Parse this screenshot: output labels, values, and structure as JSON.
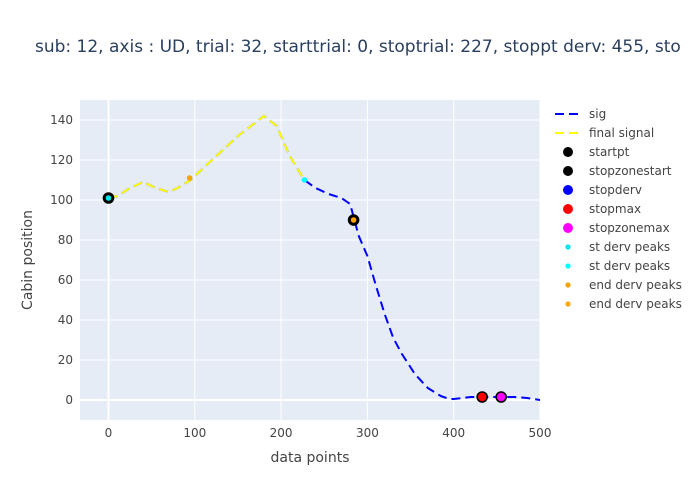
{
  "chart_data": {
    "type": "line",
    "title": "sub: 12, axis : UD, trial: 32, starttrial: 0, stoptrial: 227, stoppt derv: 455, sto",
    "xlabel": "data points",
    "ylabel": "Cabin position",
    "xlim": [
      -33,
      500
    ],
    "ylim": [
      -10,
      150
    ],
    "xticks": [
      0,
      100,
      200,
      300,
      400,
      500
    ],
    "yticks": [
      0,
      20,
      40,
      60,
      80,
      100,
      120,
      140
    ],
    "grid": true,
    "legend_position": "right",
    "series": [
      {
        "name": "sig",
        "type": "line",
        "style": "dash",
        "color": "#0000ff",
        "x": [
          0,
          10,
          25,
          40,
          55,
          70,
          80,
          95,
          110,
          130,
          150,
          165,
          180,
          195,
          210,
          227,
          240,
          255,
          270,
          280,
          285,
          290,
          300,
          310,
          320,
          330,
          340,
          355,
          370,
          385,
          395,
          400,
          410,
          420,
          430,
          440,
          455,
          470,
          485,
          500
        ],
        "y": [
          101,
          102,
          106,
          109,
          106,
          104,
          106,
          110,
          116,
          124,
          132,
          137,
          142,
          137,
          122,
          110,
          106,
          103,
          101,
          98,
          90,
          82,
          72,
          57,
          43,
          31,
          23,
          13,
          6,
          2,
          0.5,
          0.5,
          1,
          1.5,
          1.5,
          1.5,
          1.5,
          1.5,
          1,
          0
        ]
      },
      {
        "name": "final signal",
        "type": "line",
        "style": "dash",
        "color": "#ffff00",
        "x": [
          0,
          10,
          25,
          40,
          55,
          70,
          80,
          95,
          110,
          130,
          150,
          165,
          180,
          195,
          210,
          227
        ],
        "y": [
          101,
          102,
          106,
          109,
          106,
          104,
          106,
          110,
          116,
          124,
          132,
          137,
          142,
          137,
          122,
          110
        ]
      },
      {
        "name": "startpt",
        "type": "marker",
        "color": "#000000",
        "x": [
          0
        ],
        "y": [
          101
        ]
      },
      {
        "name": "stopzonestart",
        "type": "marker",
        "color": "#000000",
        "x": [
          284
        ],
        "y": [
          90
        ]
      },
      {
        "name": "stopderv",
        "type": "marker",
        "color": "#0000ff",
        "x": [],
        "y": []
      },
      {
        "name": "stopmax",
        "type": "marker",
        "color": "#ff0000",
        "x": [
          433
        ],
        "y": [
          1.5
        ]
      },
      {
        "name": "stopzonemax",
        "type": "marker",
        "color": "#ff00ff",
        "x": [
          455
        ],
        "y": [
          1.5
        ]
      },
      {
        "name": "st derv peaks",
        "type": "small-marker",
        "color": "#00e5ee",
        "x": [
          0
        ],
        "y": [
          101
        ]
      },
      {
        "name": "st derv peaks",
        "type": "small-marker",
        "color": "#00ffff",
        "x": [
          227
        ],
        "y": [
          110
        ]
      },
      {
        "name": "end derv peaks",
        "type": "small-marker",
        "color": "#f4a300",
        "x": [
          94
        ],
        "y": [
          111
        ]
      },
      {
        "name": "end derv peaks",
        "type": "small-marker",
        "color": "#ffa500",
        "x": [
          284
        ],
        "y": [
          90
        ]
      }
    ]
  },
  "colors": {
    "plot_bg": "#e5ecf6",
    "text": "#444444",
    "title": "#2a3f5f"
  }
}
